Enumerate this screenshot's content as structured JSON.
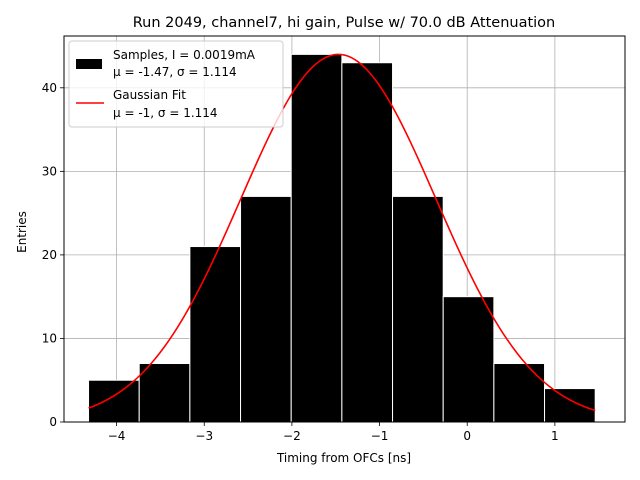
{
  "chart_data": {
    "type": "bar",
    "title": "Run 2049, channel7, hi gain, Pulse w/ 70.0 dB Attenuation",
    "xlabel": "Timing from OFCs [ns]",
    "ylabel": "Entries",
    "xlim": [
      -4.6,
      1.8
    ],
    "ylim": [
      0,
      46.2
    ],
    "xticks": [
      -4,
      -3,
      -2,
      -1,
      0,
      1
    ],
    "yticks": [
      0,
      10,
      20,
      30,
      40
    ],
    "grid": true,
    "legend_position": "top-left",
    "histogram": {
      "name_line1": "Samples, I = 0.0019mA",
      "name_line2": "μ = -1.47, σ = 1.114",
      "color": "#000000",
      "edge_color": "#ffffff",
      "bin_edges": [
        -4.32,
        -3.742,
        -3.164,
        -2.586,
        -2.008,
        -1.43,
        -0.852,
        -0.274,
        0.304,
        0.882,
        1.46
      ],
      "counts": [
        5,
        7,
        21,
        27,
        44,
        43,
        27,
        15,
        7,
        4
      ]
    },
    "fit": {
      "name_line1": "Gaussian Fit",
      "name_line2": "μ = -1, σ = 1.114",
      "color": "#ff0000",
      "type": "gaussian",
      "amplitude": 44,
      "mean": -1.47,
      "sigma": 1.114,
      "x_range": [
        -4.32,
        1.46
      ]
    }
  }
}
